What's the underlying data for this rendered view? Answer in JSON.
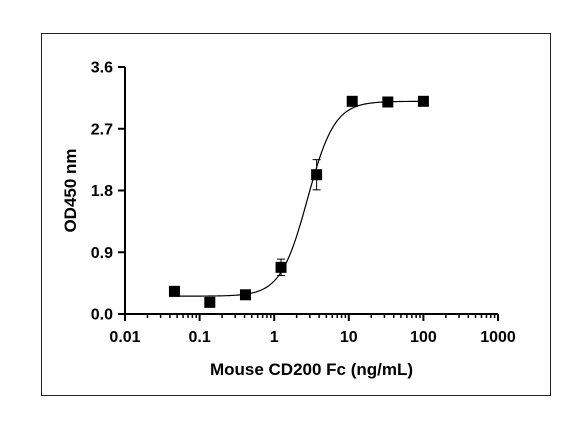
{
  "chart_data": {
    "type": "scatter",
    "title": "",
    "xlabel": "Mouse CD200 Fc (ng/mL)",
    "ylabel": "OD450 nm",
    "x_scale": "log",
    "xlim": [
      0.01,
      1000
    ],
    "ylim": [
      0.0,
      3.6
    ],
    "x_ticks": [
      "0.01",
      "0.1",
      "1",
      "10",
      "100",
      "1000"
    ],
    "y_ticks": [
      "0.0",
      "0.9",
      "1.8",
      "2.7",
      "3.6"
    ],
    "grid": false,
    "legend": "none",
    "series": [
      {
        "x": [
          0.046,
          0.137,
          0.412,
          1.235,
          3.704,
          11.11,
          33.33,
          100
        ],
        "y": [
          0.33,
          0.17,
          0.28,
          0.68,
          2.03,
          3.1,
          3.09,
          3.1
        ],
        "error": [
          0.03,
          0.02,
          0.03,
          0.12,
          0.22,
          0.03,
          0.03,
          0.03
        ],
        "marker": "square",
        "fit": "4PL"
      }
    ],
    "fit_curve": {
      "bottom": 0.26,
      "top": 3.1,
      "ec50": 2.8,
      "hill": 2.4
    },
    "colors": {
      "points": "#000000",
      "curve": "#000000",
      "axes": "#000000"
    }
  }
}
